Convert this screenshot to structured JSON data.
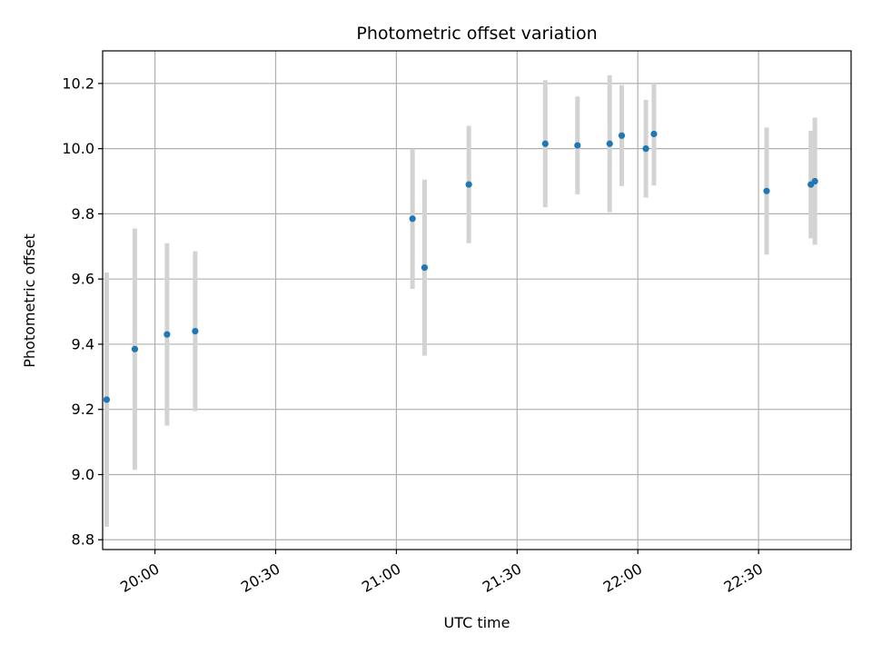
{
  "chart_data": {
    "type": "scatter",
    "title": "Photometric offset variation",
    "xlabel": "UTC time",
    "ylabel": "Photometric offset",
    "grid": true,
    "x_ticks": [
      "20:00",
      "20:30",
      "21:00",
      "21:30",
      "22:00",
      "22:30"
    ],
    "y_ticks": [
      "8.8",
      "9.0",
      "9.2",
      "9.4",
      "9.6",
      "9.8",
      "10.0",
      "10.2"
    ],
    "xlim": [
      "19:47",
      "22:53"
    ],
    "ylim": [
      8.77,
      10.3
    ],
    "point_color": "#1f77b4",
    "errorbar_color": "#d3d3d3",
    "points": [
      {
        "x": "19:48",
        "y": 9.23,
        "err": 0.39
      },
      {
        "x": "19:55",
        "y": 9.385,
        "err": 0.37
      },
      {
        "x": "20:03",
        "y": 9.43,
        "err": 0.28
      },
      {
        "x": "20:10",
        "y": 9.44,
        "err": 0.245
      },
      {
        "x": "21:04",
        "y": 9.785,
        "err": 0.215
      },
      {
        "x": "21:07",
        "y": 9.635,
        "err": 0.27
      },
      {
        "x": "21:18",
        "y": 9.89,
        "err": 0.18
      },
      {
        "x": "21:37",
        "y": 10.015,
        "err": 0.195
      },
      {
        "x": "21:45",
        "y": 10.01,
        "err": 0.15
      },
      {
        "x": "21:53",
        "y": 10.015,
        "err": 0.21
      },
      {
        "x": "21:56",
        "y": 10.04,
        "err": 0.155
      },
      {
        "x": "22:02",
        "y": 10.0,
        "err": 0.15
      },
      {
        "x": "22:04",
        "y": 10.045,
        "err": 0.158
      },
      {
        "x": "22:32",
        "y": 9.87,
        "err": 0.195
      },
      {
        "x": "22:43",
        "y": 9.89,
        "err": 0.165
      },
      {
        "x": "22:44",
        "y": 9.9,
        "err": 0.195
      }
    ]
  }
}
